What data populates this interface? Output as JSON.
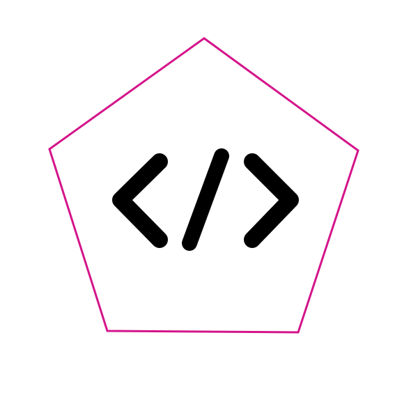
{
  "logo": {
    "name": "code-pentagon-logo",
    "icon": "code-brackets-icon",
    "colors": {
      "outline": "#d4148a",
      "glyph": "#000000",
      "background": "#ffffff"
    }
  }
}
